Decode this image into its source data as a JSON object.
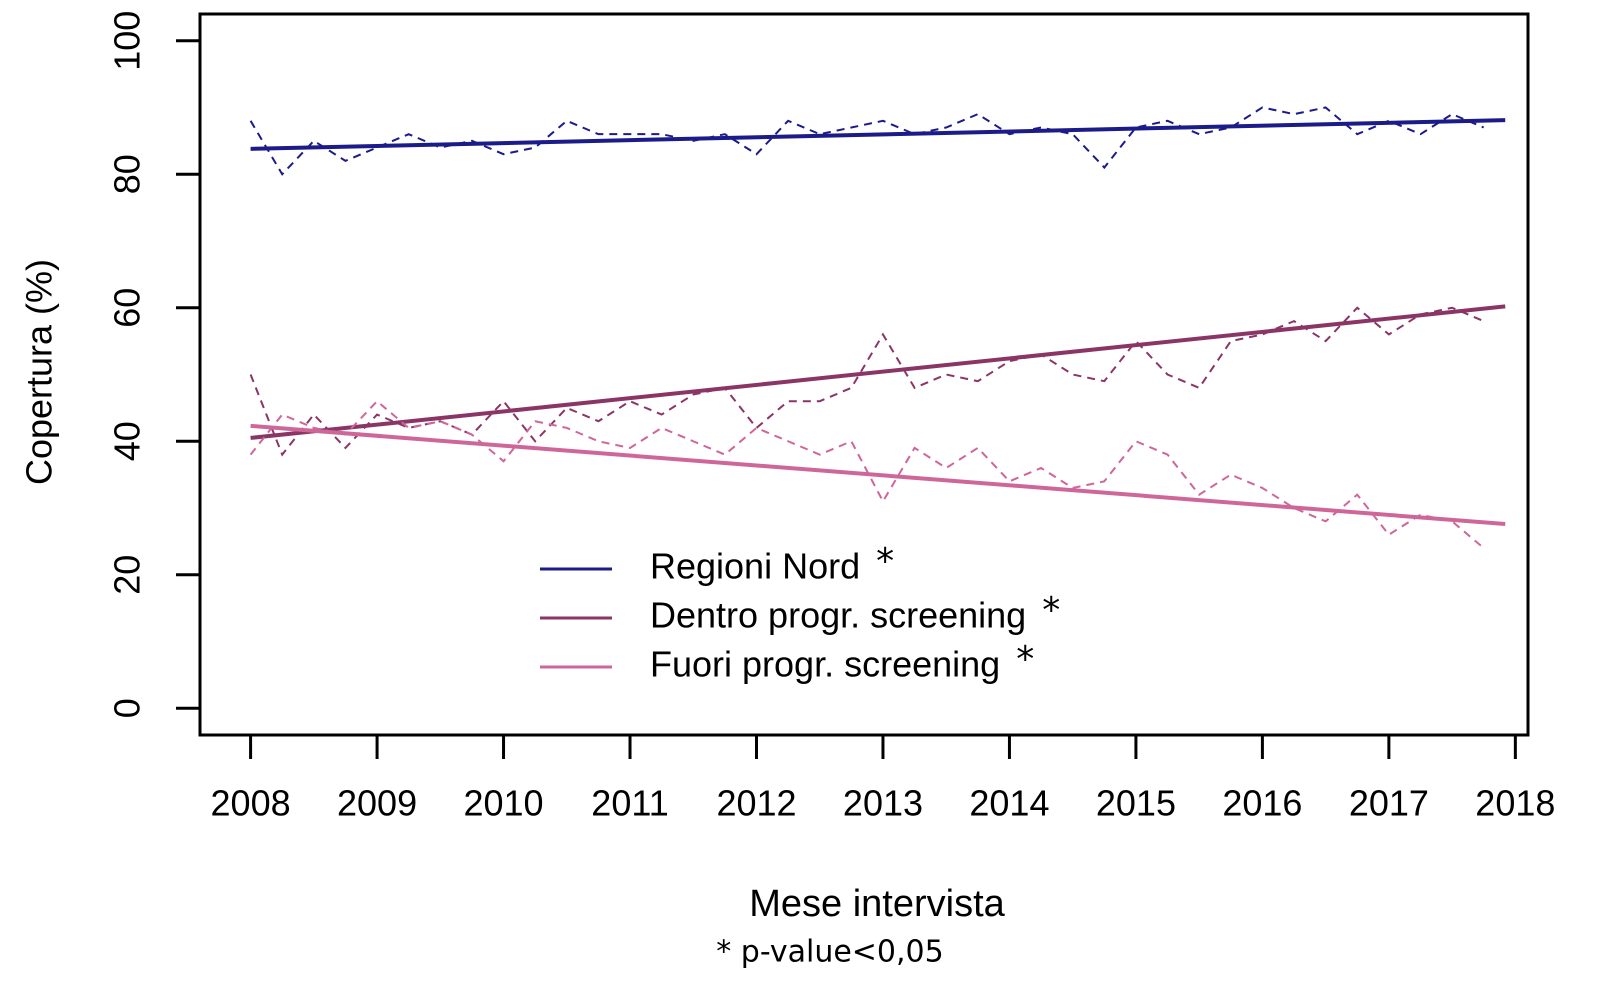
{
  "chart_data": {
    "type": "line",
    "x_label": "Mese intervista",
    "y_label": "Copertura (%)",
    "footnote": "* p-value<0,05",
    "x": [
      2008,
      2008.25,
      2008.5,
      2008.75,
      2009,
      2009.25,
      2009.5,
      2009.75,
      2010,
      2010.25,
      2010.5,
      2010.75,
      2011,
      2011.25,
      2011.5,
      2011.75,
      2012,
      2012.25,
      2012.5,
      2012.75,
      2013,
      2013.25,
      2013.5,
      2013.75,
      2014,
      2014.25,
      2014.5,
      2014.75,
      2015,
      2015.25,
      2015.5,
      2015.75,
      2016,
      2016.25,
      2016.5,
      2016.75,
      2017,
      2017.25,
      2017.5,
      2017.75
    ],
    "trend_x": [
      2008,
      2017.92
    ],
    "series": [
      {
        "name": "Regioni Nord",
        "significance": "*",
        "color": "#1b1b8a",
        "values": [
          88,
          80,
          85,
          82,
          84,
          86,
          84,
          85,
          83,
          84,
          88,
          86,
          86,
          86,
          85,
          86,
          83,
          88,
          86,
          87,
          88,
          86,
          87,
          89,
          86,
          87,
          86,
          81,
          87,
          88,
          86,
          87,
          90,
          89,
          90,
          86,
          88,
          86,
          89,
          87
        ],
        "trend_values": [
          83.8,
          88.1
        ]
      },
      {
        "name": "Dentro progr. screening",
        "significance": "*",
        "color": "#8a3566",
        "values": [
          50,
          38,
          44,
          39,
          44,
          42,
          43,
          41,
          46,
          40,
          45,
          43,
          46,
          44,
          47,
          48,
          42,
          46,
          46,
          48,
          56,
          48,
          50,
          49,
          52,
          53,
          50,
          49,
          55,
          50,
          48,
          55,
          56,
          58,
          55,
          60,
          56,
          59,
          60,
          58
        ],
        "trend_values": [
          40.5,
          60.2
        ]
      },
      {
        "name": "Fuori progr. screening",
        "significance": "*",
        "color": "#cf6699",
        "values": [
          38,
          44,
          42,
          41,
          46,
          42,
          43,
          41,
          37,
          43,
          42,
          40,
          39,
          42,
          40,
          38,
          42,
          40,
          38,
          40,
          31,
          39,
          36,
          39,
          34,
          36,
          33,
          34,
          40,
          38,
          32,
          35,
          33,
          30,
          28,
          32,
          26,
          29,
          28,
          24
        ],
        "trend_values": [
          42.3,
          27.6
        ]
      }
    ],
    "xlim": [
      2007.6,
      2018.1
    ],
    "xticks": [
      2008,
      2009,
      2010,
      2011,
      2012,
      2013,
      2014,
      2015,
      2016,
      2017,
      2018
    ],
    "ylim": [
      -4,
      104
    ],
    "yticks": [
      0,
      20,
      40,
      60,
      80,
      100
    ]
  }
}
